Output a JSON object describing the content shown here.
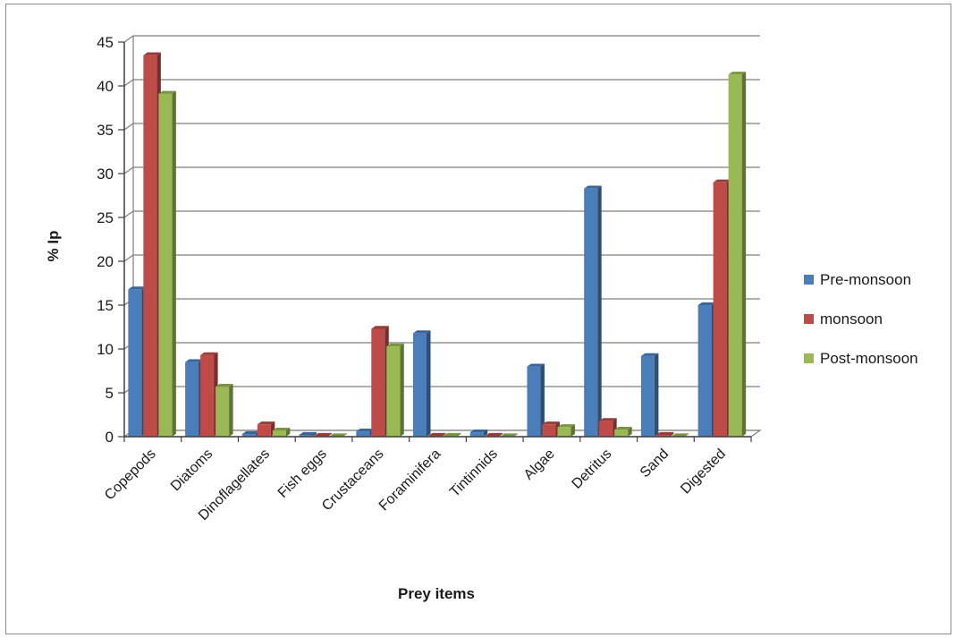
{
  "chart_data": {
    "type": "bar",
    "title": "",
    "xlabel": "Prey  items",
    "ylabel": "% Ip",
    "ylim": [
      0,
      45
    ],
    "yticks": [
      0,
      5,
      10,
      15,
      20,
      25,
      30,
      35,
      40,
      45
    ],
    "grid": true,
    "legend_position": "right",
    "categories": [
      "Copepods",
      "Diatoms",
      "Dinoflagellates",
      "Fish eggs",
      "Crustaceans",
      "Foraminifera",
      "Tintinnids",
      "Algae",
      "Detritus",
      "Sand",
      "Digested"
    ],
    "series": [
      {
        "name": "Pre-monsoon",
        "color": "#4a7ebb",
        "values": [
          16.8,
          8.5,
          0.3,
          0.2,
          0.6,
          11.8,
          0.5,
          8.0,
          28.3,
          9.2,
          15.0
        ]
      },
      {
        "name": "monsoon",
        "color": "#be4b48",
        "values": [
          43.5,
          9.3,
          1.4,
          0.1,
          12.3,
          0.1,
          0.1,
          1.4,
          1.8,
          0.2,
          29.0
        ]
      },
      {
        "name": "Post-monsoon",
        "color": "#98b954",
        "values": [
          39.1,
          5.7,
          0.7,
          0.05,
          10.3,
          0.1,
          0.05,
          1.1,
          0.8,
          0.05,
          41.3
        ]
      }
    ]
  }
}
